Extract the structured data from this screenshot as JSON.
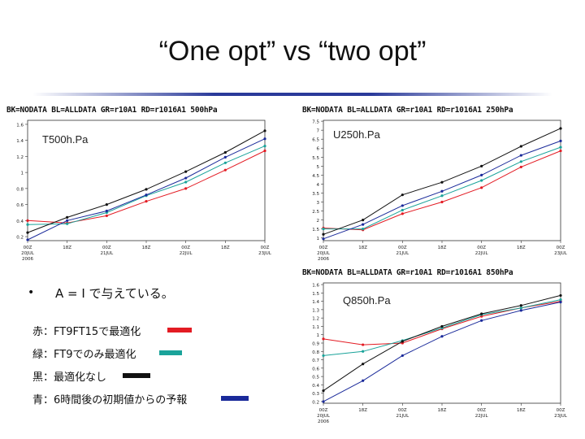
{
  "title": "“One opt” vs “two opt”",
  "colors": {
    "title_rule": "#2a3a9a",
    "red": "#e31b23",
    "green": "#1aa39a",
    "black": "#111111",
    "blue": "#1a2a9a"
  },
  "statement": {
    "bullet": "•",
    "text": "A = I で与えている。"
  },
  "legend": [
    {
      "text": "赤：FT9FT15で最適化",
      "color": "#e31b23"
    },
    {
      "text": "緑：FT9でのみ最適化",
      "color": "#1aa39a"
    },
    {
      "text": "黒：最適化なし",
      "color": "#111111"
    },
    {
      "text": "青：6時間後の初期値からの予報",
      "color": "#1a2a9a"
    }
  ],
  "chart_data": [
    {
      "type": "line",
      "header": "BK=NODATA BL=ALLDATA GR=r10A1 RD=r1016A1 500hPa",
      "label": "T500h.Pa",
      "x": [
        "00Z 20JUL 2006",
        "18Z",
        "00Z 21JUL",
        "18Z",
        "00Z 22JUL",
        "18Z",
        "00Z 23JUL"
      ],
      "yticks": [
        0.2,
        0.4,
        0.6,
        0.8,
        1,
        1.2,
        1.4,
        1.6
      ],
      "ylim": [
        0.15,
        1.65
      ],
      "series": [
        {
          "color": "#e31b23",
          "values": [
            0.4,
            0.37,
            0.46,
            0.64,
            0.8,
            1.03,
            1.27
          ]
        },
        {
          "color": "#1aa39a",
          "values": [
            0.35,
            0.36,
            0.5,
            0.71,
            0.88,
            1.12,
            1.33
          ]
        },
        {
          "color": "#111111",
          "values": [
            0.25,
            0.44,
            0.6,
            0.79,
            1.01,
            1.25,
            1.52
          ]
        },
        {
          "color": "#1a2a9a",
          "values": [
            0.16,
            0.4,
            0.52,
            0.72,
            0.93,
            1.19,
            1.42
          ]
        }
      ]
    },
    {
      "type": "line",
      "header": "BK=NODATA BL=ALLDATA GR=r10A1 RD=r1016A1 250hPa",
      "label": "U250h.Pa",
      "x": [
        "00Z 20JUL 2006",
        "18Z",
        "00Z 21JUL",
        "18Z",
        "00Z 22JUL",
        "18Z",
        "00Z 23JUL"
      ],
      "yticks": [
        1,
        1.5,
        2,
        2.5,
        3,
        3.5,
        4,
        4.5,
        5,
        5.5,
        6,
        6.5,
        7,
        7.5
      ],
      "ylim": [
        0.85,
        7.55
      ],
      "series": [
        {
          "color": "#e31b23",
          "values": [
            1.55,
            1.45,
            2.35,
            3.0,
            3.8,
            4.95,
            5.85
          ]
        },
        {
          "color": "#1aa39a",
          "values": [
            1.5,
            1.5,
            2.55,
            3.35,
            4.2,
            5.25,
            6.05
          ]
        },
        {
          "color": "#111111",
          "values": [
            1.2,
            2.0,
            3.4,
            4.1,
            5.0,
            6.1,
            7.1
          ]
        },
        {
          "color": "#1a2a9a",
          "values": [
            0.95,
            1.75,
            2.8,
            3.6,
            4.5,
            5.6,
            6.4
          ]
        }
      ]
    },
    {
      "type": "line",
      "header": "BK=NODATA BL=ALLDATA GR=r10A1 RD=r1016A1 850hPa",
      "label": "Q850h.Pa",
      "x": [
        "00Z 20JUL 2006",
        "18Z",
        "00Z 21JUL",
        "18Z",
        "00Z 22JUL",
        "18Z",
        "00Z 23JUL"
      ],
      "yticks": [
        0.2,
        0.3,
        0.4,
        0.5,
        0.6,
        0.7,
        0.8,
        0.9,
        1,
        1.1,
        1.2,
        1.3,
        1.4,
        1.5,
        1.6
      ],
      "ylim": [
        0.18,
        1.62
      ],
      "series": [
        {
          "color": "#e31b23",
          "values": [
            0.95,
            0.88,
            0.9,
            1.07,
            1.22,
            1.32,
            1.4
          ]
        },
        {
          "color": "#1aa39a",
          "values": [
            0.75,
            0.8,
            0.93,
            1.08,
            1.24,
            1.32,
            1.42
          ]
        },
        {
          "color": "#111111",
          "values": [
            0.33,
            0.65,
            0.92,
            1.1,
            1.25,
            1.35,
            1.47
          ]
        },
        {
          "color": "#1a2a9a",
          "values": [
            0.2,
            0.45,
            0.75,
            0.98,
            1.17,
            1.29,
            1.39
          ]
        }
      ]
    }
  ]
}
